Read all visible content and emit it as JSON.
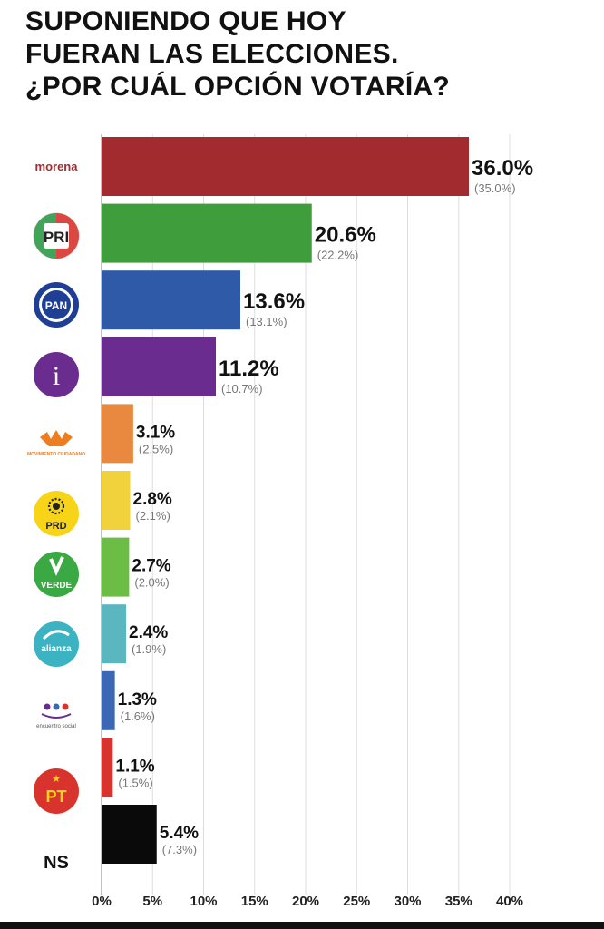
{
  "title_lines": [
    "SUPONIENDO QUE HOY",
    "FUERAN LAS ELECCIONES.",
    "¿POR CUÁL OPCIÓN VOTARÍA?"
  ],
  "chart_data": {
    "type": "bar",
    "orientation": "horizontal",
    "title": "SUPONIENDO QUE HOY FUERAN LAS ELECCIONES. ¿POR CUÁL OPCIÓN VOTARÍA?",
    "categories": [
      "morena",
      "PRI",
      "PAN",
      "i",
      "Movimiento Ciudadano",
      "PRD",
      "VERDE",
      "alianza",
      "encuentro social",
      "PT",
      "NS"
    ],
    "series": [
      {
        "values": [
          36.0,
          20.6,
          13.6,
          11.2,
          3.1,
          2.8,
          2.7,
          2.4,
          1.3,
          1.1,
          5.4
        ],
        "labels": [
          "36.0%",
          "20.6%",
          "13.6%",
          "11.2%",
          "3.1%",
          "2.8%",
          "2.7%",
          "2.4%",
          "1.3%",
          "1.1%",
          "5.4%"
        ]
      },
      {
        "values": [
          35.0,
          22.2,
          13.1,
          10.7,
          2.5,
          2.1,
          2.0,
          1.9,
          1.6,
          1.5,
          7.3
        ],
        "labels": [
          "(35.0%)",
          "(22.2%)",
          "(13.1%)",
          "(10.7%)",
          "(2.5%)",
          "(2.1%)",
          "(2.0%)",
          "(1.9%)",
          "(1.6%)",
          "(1.5%)",
          "(7.3%)"
        ]
      }
    ],
    "colors": [
      "#a12b2f",
      "#3f9d3c",
      "#2e5aa8",
      "#6a2d8f",
      "#e8893f",
      "#f2d23c",
      "#6bbd45",
      "#5bb7bf",
      "#3b67b5",
      "#d8332c",
      "#0a0a0a"
    ],
    "xlim": [
      0,
      40
    ],
    "xticks": [
      0,
      5,
      10,
      15,
      20,
      25,
      30,
      35,
      40
    ],
    "xtick_labels": [
      "0%",
      "5%",
      "10%",
      "15%",
      "20%",
      "25%",
      "30%",
      "35%",
      "40%"
    ],
    "grid": true,
    "legend": "none"
  },
  "logos": {
    "morena": "morena",
    "pri": "PRI",
    "pan": "PAN",
    "independent": "i",
    "mc": "MOVIMIENTO CIUDADANO",
    "prd": "PRD",
    "verde": "VERDE",
    "alianza": "alianza",
    "encuentro": "encuentro social",
    "pt": "PT",
    "ns": "NS"
  }
}
